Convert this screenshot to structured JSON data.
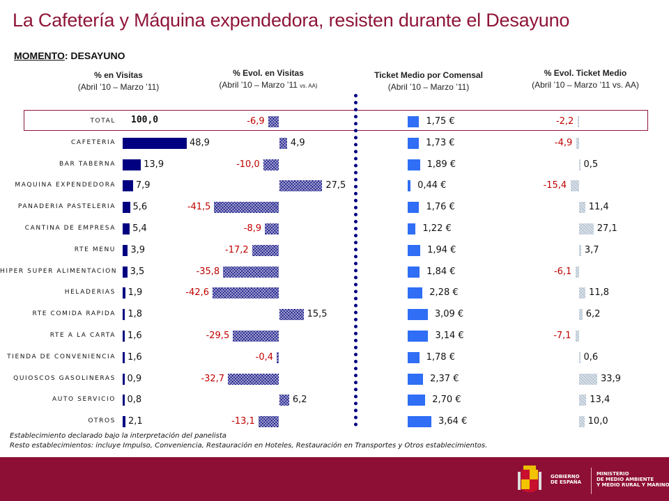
{
  "title": "La Cafetería y Máquina expendedora, resisten durante el Desayuno",
  "moment": {
    "prefix": "MOMENTO",
    "suffix": ": DESAYUNO"
  },
  "columns": {
    "share": {
      "title": "% en Visitas",
      "subtitle": "(Abril ’10 – Marzo ’11)"
    },
    "evol_visits": {
      "title": "% Evol. en Visitas",
      "subtitle": "(Abril ’10 – Marzo ’11",
      "subtitle_small": "vs. AA)"
    },
    "ticket": {
      "title": "Ticket Medio por Comensal",
      "subtitle": "(Abril ’10 – Marzo ’11)"
    },
    "evol_ticket": {
      "title": "% Evol. Ticket Medio",
      "subtitle": "(Abril ’10 – Marzo ’11 vs. AA)"
    }
  },
  "chart_data": {
    "type": "bar",
    "categories": [
      "TOTAL",
      "CAFETERIA",
      "BAR TABERNA",
      "MAQUINA EXPENDEDORA",
      "PANADERIA PASTELERIA",
      "CANTINA DE EMPRESA",
      "RTE MENU",
      "HIPER SUPER ALIMENTACION",
      "HELADERIAS",
      "RTE COMIDA RAPIDA",
      "RTE A LA CARTA",
      "TIENDA DE CONVENIENCIA",
      "QUIOSCOS GASOLINERAS",
      "AUTO SERVICIO",
      "OTROS"
    ],
    "series": [
      {
        "name": "% en Visitas",
        "values": [
          100.0,
          48.9,
          13.9,
          7.9,
          5.6,
          5.4,
          3.9,
          3.5,
          1.9,
          1.8,
          1.6,
          1.6,
          0.9,
          0.8,
          2.1
        ],
        "labels": [
          "100,0",
          "48,9",
          "13,9",
          "7,9",
          "5,6",
          "5,4",
          "3,9",
          "3,5",
          "1,9",
          "1,8",
          "1,6",
          "1,6",
          "0,9",
          "0,8",
          "2,1"
        ]
      },
      {
        "name": "% Evol. en Visitas",
        "values": [
          -6.9,
          4.9,
          -10.0,
          27.5,
          -41.5,
          -8.9,
          -17.2,
          -35.8,
          -42.6,
          15.5,
          -29.5,
          -0.4,
          -32.7,
          6.2,
          -13.1
        ],
        "labels": [
          "-6,9",
          "4,9",
          "-10,0",
          "27,5",
          "-41,5",
          "-8,9",
          "-17,2",
          "-35,8",
          "-42,6",
          "15,5",
          "-29,5",
          "-0,4",
          "-32,7",
          "6,2",
          "-13,1"
        ]
      },
      {
        "name": "Ticket Medio por Comensal",
        "values": [
          1.75,
          1.73,
          1.89,
          0.44,
          1.76,
          1.22,
          1.94,
          1.84,
          2.28,
          3.09,
          3.14,
          1.78,
          2.37,
          2.7,
          3.64
        ],
        "labels": [
          "1,75 €",
          "1,73 €",
          "1,89 €",
          "0,44 €",
          "1,76 €",
          "1,22 €",
          "1,94 €",
          "1,84 €",
          "2,28 €",
          "3,09 €",
          "3,14 €",
          "1,78 €",
          "2,37 €",
          "2,70 €",
          "3,64 €"
        ]
      },
      {
        "name": "% Evol. Ticket Medio",
        "values": [
          -2.2,
          -4.9,
          0.5,
          -15.4,
          11.4,
          27.1,
          3.7,
          -6.1,
          11.8,
          6.2,
          -7.1,
          0.6,
          33.9,
          13.4,
          10.0
        ],
        "labels": [
          "-2,2",
          "-4,9",
          "0,5",
          "-15,4",
          "11,4",
          "27,1",
          "3,7",
          "-6,1",
          "11,8",
          "6,2",
          "-7,1",
          "0,6",
          "33,9",
          "13,4",
          "10,0"
        ]
      }
    ]
  },
  "notes": {
    "line1": "Establecimiento declarado bajo la interpretación del panelista",
    "line2": "Resto establecimientos: incluye Impulso, Conveniencia, Restauración en Hoteles, Restauración en Transportes y Otros establecimientos."
  },
  "logo": {
    "gov_line1": "GOBIERNO",
    "gov_line2": "DE ESPAÑA",
    "min_line1": "MINISTERIO",
    "min_line2": "DE MEDIO AMBIENTE",
    "min_line3": "Y MEDIO RURAL Y MARINO"
  },
  "colors": {
    "brand": "#8e1538",
    "share_bar": "#000080",
    "ticket_bar": "#2f6ef5",
    "negative": "#c00000"
  }
}
